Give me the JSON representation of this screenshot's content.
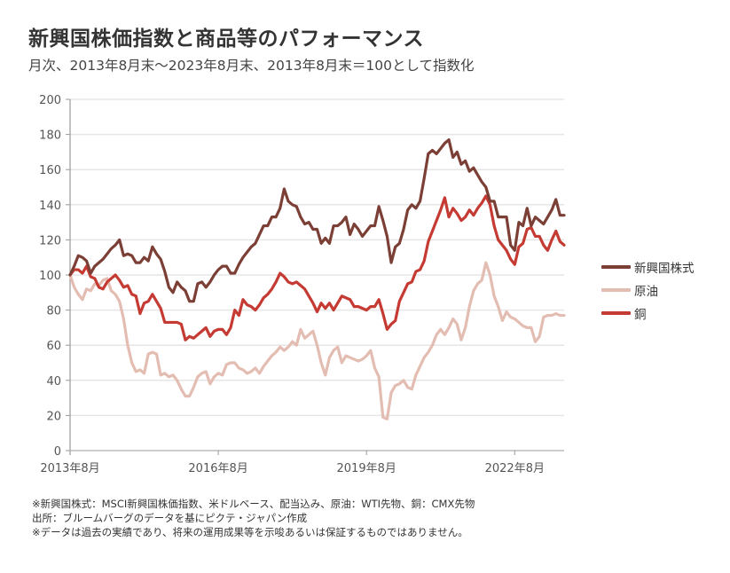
{
  "header": {
    "title": "新興国株価指数と商品等のパフォーマンス",
    "subtitle": "月次、2013年8月末～2023年8月末、2013年8月末＝100として指数化"
  },
  "footnotes": [
    "※新興国株式：MSCI新興国株価指数、米ドルベース、配当込み、原油：WTI先物、銅：CMX先物",
    "出所：ブルームバーグのデータを基にピクテ・ジャパン作成",
    "※データは過去の実績であり、将来の運用成果等を示唆あるいは保証するものではありません。"
  ],
  "chart_data": {
    "type": "line",
    "title": "新興国株価指数と商品等のパフォーマンス",
    "subtitle": "月次、2013年8月末～2023年8月末、2013年8月末＝100として指数化",
    "xlabel": "",
    "ylabel": "",
    "x_start": "2013-08",
    "x_end": "2023-08",
    "frequency": "monthly",
    "x_ticks": [
      "2013年8月",
      "2016年8月",
      "2019年8月",
      "2022年8月"
    ],
    "y_ticks": [
      0,
      20,
      40,
      60,
      80,
      100,
      120,
      140,
      160,
      180,
      200
    ],
    "ylim": [
      0,
      200
    ],
    "grid": true,
    "legend_position": "right",
    "series": [
      {
        "name": "新興国株式",
        "color": "#7b3f35",
        "values": [
          100,
          105,
          111,
          110,
          108,
          101,
          105,
          107,
          109,
          112,
          115,
          117,
          120,
          111,
          112,
          111,
          107,
          107,
          110,
          108,
          116,
          112,
          109,
          102,
          93,
          90,
          96,
          93,
          91,
          85,
          85,
          95,
          96,
          93,
          96,
          100,
          103,
          105,
          105,
          101,
          101,
          106,
          110,
          113,
          116,
          118,
          123,
          128,
          128,
          133,
          133,
          138,
          149,
          142,
          140,
          139,
          133,
          129,
          130,
          126,
          126,
          118,
          121,
          118,
          128,
          128,
          130,
          133,
          123,
          129,
          126,
          122,
          125,
          128,
          128,
          139,
          131,
          122,
          107,
          116,
          118,
          126,
          137,
          140,
          138,
          142,
          155,
          169,
          171,
          169,
          172,
          175,
          177,
          167,
          170,
          163,
          165,
          159,
          161,
          157,
          153,
          150,
          142,
          142,
          133,
          133,
          133,
          117,
          114,
          130,
          128,
          138,
          128,
          133,
          131,
          129,
          133,
          137,
          143,
          134,
          134
        ]
      },
      {
        "name": "原油",
        "color": "#e3bcb2",
        "values": [
          100,
          93,
          89,
          86,
          92,
          91,
          95,
          94,
          97,
          98,
          91,
          89,
          85,
          75,
          60,
          50,
          45,
          46,
          44,
          55,
          56,
          55,
          43,
          44,
          42,
          43,
          40,
          35,
          31,
          31,
          36,
          42,
          44,
          45,
          38,
          42,
          44,
          43,
          49,
          50,
          50,
          47,
          46,
          44,
          45,
          47,
          44,
          48,
          51,
          54,
          56,
          59,
          57,
          59,
          62,
          60,
          69,
          64,
          66,
          68,
          60,
          50,
          43,
          53,
          57,
          59,
          50,
          54,
          53,
          52,
          51,
          52,
          54,
          57,
          47,
          42,
          19,
          18,
          33,
          37,
          38,
          40,
          36,
          35,
          43,
          48,
          53,
          56,
          60,
          66,
          69,
          66,
          70,
          75,
          72,
          63,
          70,
          82,
          91,
          95,
          97,
          107,
          100,
          88,
          82,
          74,
          79,
          76,
          75,
          73,
          71,
          70,
          70,
          62,
          65,
          76,
          77,
          77,
          78,
          77,
          77
        ]
      },
      {
        "name": "銅",
        "color": "#c53a32",
        "values": [
          100,
          103,
          103,
          101,
          105,
          99,
          98,
          93,
          92,
          96,
          98,
          100,
          97,
          93,
          94,
          89,
          88,
          78,
          84,
          85,
          89,
          85,
          81,
          73,
          73,
          73,
          73,
          72,
          63,
          65,
          64,
          66,
          68,
          70,
          65,
          68,
          69,
          69,
          66,
          70,
          80,
          77,
          86,
          83,
          82,
          80,
          83,
          87,
          89,
          92,
          96,
          101,
          99,
          96,
          95,
          96,
          94,
          92,
          88,
          84,
          79,
          84,
          81,
          84,
          80,
          84,
          88,
          87,
          86,
          82,
          82,
          81,
          80,
          82,
          82,
          86,
          78,
          69,
          72,
          74,
          85,
          90,
          95,
          96,
          102,
          103,
          108,
          119,
          125,
          131,
          137,
          144,
          133,
          138,
          135,
          131,
          133,
          137,
          134,
          138,
          141,
          145,
          140,
          128,
          120,
          117,
          114,
          109,
          106,
          116,
          118,
          126,
          127,
          122,
          122,
          117,
          114,
          120,
          125,
          119,
          117
        ]
      }
    ]
  }
}
